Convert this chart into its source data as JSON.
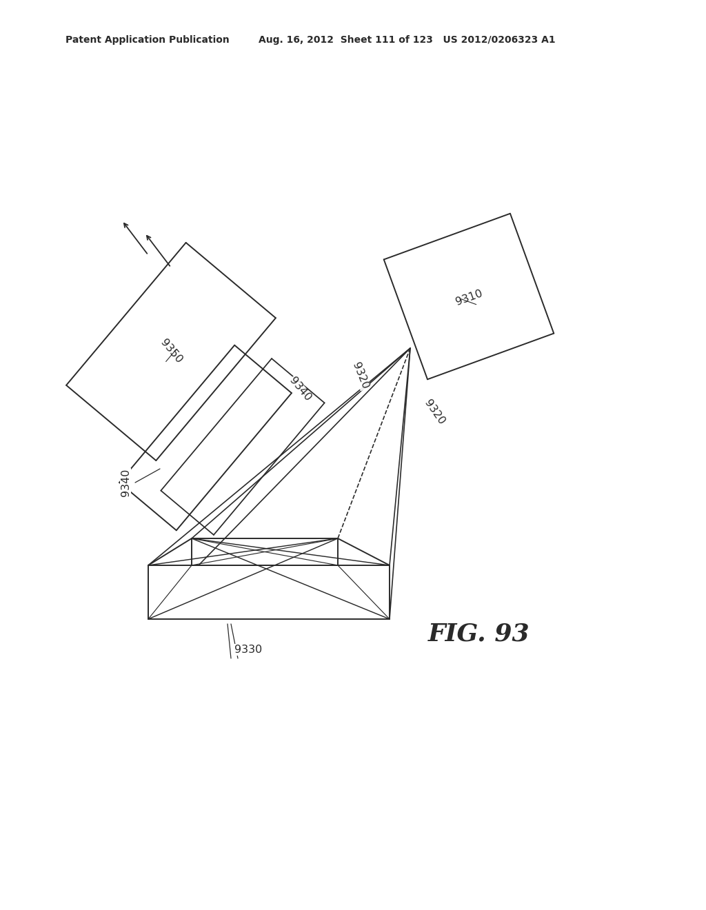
{
  "header_left": "Patent Application Publication",
  "header_right": "Aug. 16, 2012  Sheet 111 of 123   US 2012/0206323 A1",
  "fig_label": "FIG. 93",
  "bg": "#ffffff",
  "lc": "#2a2a2a"
}
